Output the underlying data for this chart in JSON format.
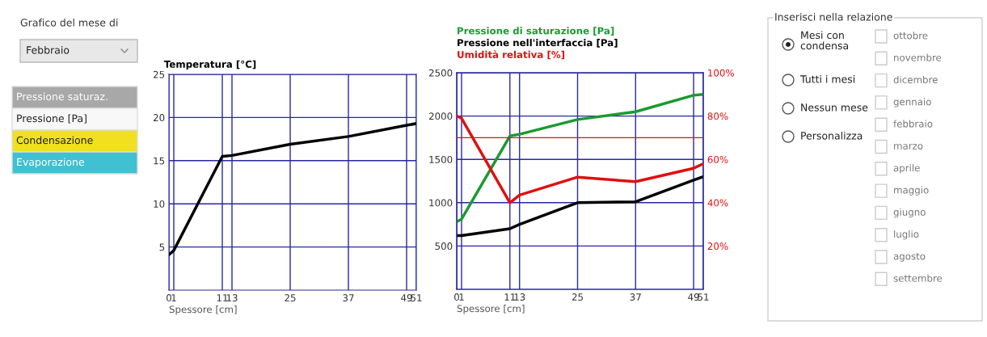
{
  "chart_data": [
    {
      "type": "other",
      "title": "Grafico del mese di",
      "annotations": [
        "Febbraio",
        "Pressione saturaz.",
        "Pressione [Pa]",
        "Condensazione",
        "Evaporazione"
      ],
      "colors": [
        "#e8e8e8",
        "#a8a8a8",
        "#f8f8f8",
        "#f0e020",
        "#40c0d0"
      ]
    },
    {
      "type": "line",
      "title": "Temperatura [°C]",
      "xlabel": "Spessore [cm]",
      "x": [
        0,
        1,
        11,
        13,
        25,
        37,
        49,
        51
      ],
      "series": [
        {
          "color": "#000000",
          "values": [
            4.1,
            4.6,
            15.5,
            15.6,
            16.9,
            17.8,
            19.1,
            19.3
          ]
        }
      ],
      "xlim": [
        0,
        51
      ],
      "xticks": [
        0,
        1,
        11,
        13,
        25,
        37,
        49,
        51
      ],
      "ylim": [
        0,
        25
      ],
      "yticks": [
        5,
        10,
        15,
        20,
        25
      ],
      "grid": true,
      "legend": false
    },
    {
      "type": "line",
      "xlabel": "Spessore [cm]",
      "x": [
        0,
        1,
        11,
        13,
        25,
        37,
        49,
        51
      ],
      "series": [
        {
          "name": "Pressione di saturazione [Pa]",
          "color": "#1a9a30",
          "values": [
            780,
            810,
            1770,
            1790,
            1960,
            2050,
            2240,
            2250
          ]
        },
        {
          "name": "Pressione nell'interfaccia [Pa]",
          "color": "#000000",
          "values": [
            620,
            620,
            700,
            750,
            1000,
            1010,
            1260,
            1300
          ]
        },
        {
          "name": "Umidità relativa [%]",
          "color": "#e01010",
          "axis": "y2",
          "values": [
            80,
            79,
            40,
            43.5,
            51.8,
            49.7,
            55.9,
            58
          ]
        }
      ],
      "xlim": [
        0,
        51
      ],
      "xticks": [
        0,
        1,
        11,
        13,
        25,
        37,
        49,
        51
      ],
      "ylim": [
        0,
        2500
      ],
      "yticks": [
        500,
        1000,
        1500,
        2000,
        2500
      ],
      "y2lim": [
        0,
        100
      ],
      "y2ticks": [
        {
          "value": 20,
          "label": "20%"
        },
        {
          "value": 40,
          "label": "40%"
        },
        {
          "value": 60,
          "label": "60%"
        },
        {
          "value": 80,
          "label": "80%"
        },
        {
          "value": 100,
          "label": "100%"
        }
      ],
      "ref_lines": [
        {
          "axis": "y2",
          "value": 70,
          "color": "#e01010"
        }
      ],
      "grid": true,
      "legend": "top"
    },
    {
      "type": "other",
      "title": "Inserisci nella relazione",
      "annotations": [
        "Mesi con\ncondensa",
        "Tutti i mesi",
        "Nessun mese",
        "Personalizza"
      ],
      "categories": [
        "ottobre",
        "novembre",
        "dicembre",
        "gennaio",
        "febbraio",
        "marzo",
        "aprile",
        "maggio",
        "giugno",
        "luglio",
        "agosto",
        "settembre"
      ]
    }
  ]
}
